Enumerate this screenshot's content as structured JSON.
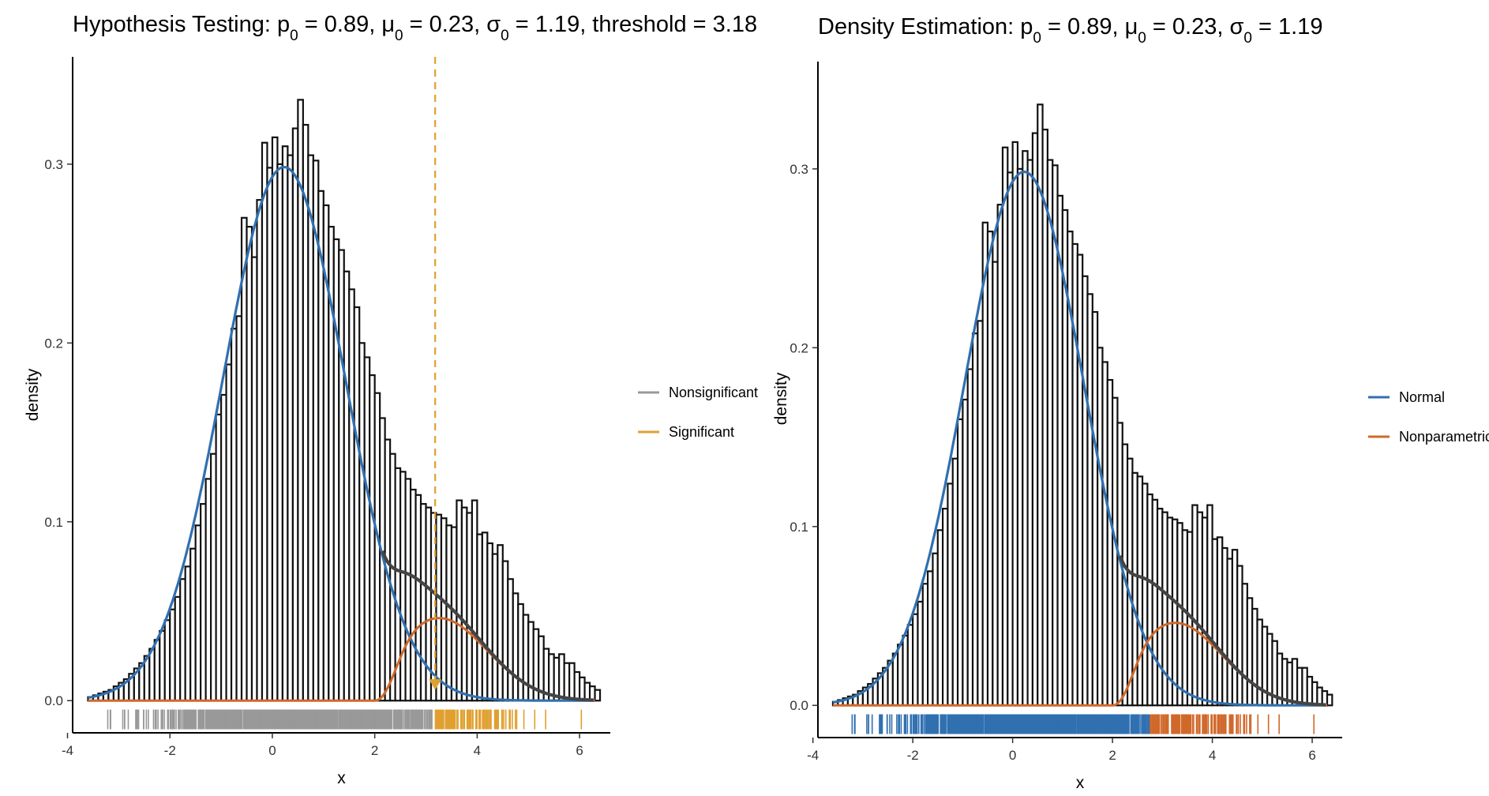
{
  "chart_data": [
    {
      "type": "bar",
      "title_parts": [
        "Hypothesis Testing: p",
        "0",
        " = 0.89, ",
        "μ",
        "0",
        " = 0.23, ",
        "σ",
        "0",
        " = 1.19, threshold = 3.18"
      ],
      "xlabel": "x",
      "ylabel": "density",
      "xlim": [
        -3.9,
        6.6
      ],
      "ylim": [
        -0.018,
        0.36
      ],
      "xticks": [
        -4,
        -2,
        0,
        2,
        4,
        6
      ],
      "yticks": [
        0.0,
        0.1,
        0.2,
        0.3
      ],
      "threshold": 3.18,
      "threshold_color": "#E0A030",
      "legend": [
        {
          "name": "Nonsignificant",
          "color": "#999999"
        },
        {
          "name": "Significant",
          "color": "#E0A030"
        }
      ],
      "legend_placement": "right",
      "rug_split": 3.18,
      "rug_colors": [
        "#999999",
        "#E0A030"
      ]
    },
    {
      "type": "bar",
      "title_parts": [
        "Density Estimation: p",
        "0",
        " = 0.89, ",
        "μ",
        "0",
        " = 0.23, ",
        "σ",
        "0",
        " = 1.19"
      ],
      "xlabel": "x",
      "ylabel": "density",
      "xlim": [
        -3.9,
        6.6
      ],
      "ylim": [
        -0.018,
        0.36
      ],
      "xticks": [
        -4,
        -2,
        0,
        2,
        4,
        6
      ],
      "yticks": [
        0.0,
        0.1,
        0.2,
        0.3
      ],
      "legend": [
        {
          "name": "Normal",
          "color": "#3070B0"
        },
        {
          "name": "Nonparametric",
          "color": "#D0682A"
        }
      ],
      "legend_placement": "right",
      "rug_split": 2.75,
      "rug_colors": [
        "#3070B0",
        "#D0682A"
      ]
    }
  ],
  "histogram": {
    "bin_start": -3.6,
    "bin_width": 0.1,
    "values": [
      0.002,
      0.003,
      0.004,
      0.005,
      0.006,
      0.008,
      0.01,
      0.012,
      0.015,
      0.018,
      0.021,
      0.025,
      0.029,
      0.034,
      0.039,
      0.045,
      0.051,
      0.058,
      0.068,
      0.075,
      0.085,
      0.098,
      0.11,
      0.124,
      0.138,
      0.16,
      0.171,
      0.188,
      0.208,
      0.215,
      0.27,
      0.265,
      0.248,
      0.28,
      0.312,
      0.298,
      0.315,
      0.3,
      0.31,
      0.305,
      0.32,
      0.336,
      0.322,
      0.305,
      0.302,
      0.285,
      0.277,
      0.265,
      0.258,
      0.252,
      0.24,
      0.23,
      0.22,
      0.2,
      0.192,
      0.182,
      0.172,
      0.158,
      0.146,
      0.138,
      0.13,
      0.128,
      0.124,
      0.118,
      0.115,
      0.11,
      0.108,
      0.105,
      0.104,
      0.102,
      0.098,
      0.097,
      0.112,
      0.108,
      0.105,
      0.112,
      0.093,
      0.094,
      0.088,
      0.082,
      0.087,
      0.078,
      0.068,
      0.06,
      0.054,
      0.048,
      0.044,
      0.04,
      0.036,
      0.029,
      0.026,
      0.024,
      0.026,
      0.021,
      0.021,
      0.016,
      0.013,
      0.01,
      0.008,
      0.006
    ]
  },
  "curves": {
    "null_color": "#3070B0",
    "alt_color": "#D0682A",
    "mix_color": "#444444",
    "p0": 0.89,
    "mu0": 0.23,
    "sigma0": 1.19,
    "x_range": [
      -3.6,
      6.3
    ]
  },
  "rug_range": [
    -3.6,
    6.3
  ]
}
